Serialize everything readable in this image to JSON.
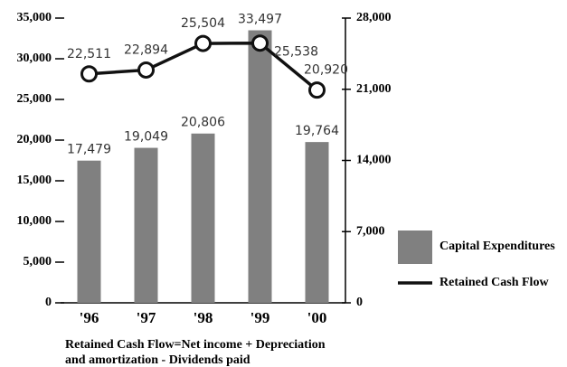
{
  "chart_data": {
    "type": "bar",
    "categories": [
      "'96",
      "'97",
      "'98",
      "'99",
      "'00"
    ],
    "series": [
      {
        "name": "Capital Expenditures",
        "type": "bar",
        "color": "#808080",
        "values": [
          17479,
          19049,
          20806,
          33497,
          19764
        ],
        "value_labels": [
          "17,479",
          "19,049",
          "20,806",
          "33,497",
          "19,764"
        ]
      },
      {
        "name": "Retained Cash Flow",
        "type": "line",
        "axis": "y2",
        "color": "#111111",
        "values": [
          22511,
          22894,
          25504,
          25538,
          20920
        ],
        "value_labels": [
          "22,511",
          "22,894",
          "25,504",
          "25,538",
          "20,920"
        ]
      }
    ],
    "ylim": [
      0,
      35000
    ],
    "yticks": [
      0,
      {
        "value": 5000,
        "label": "5,000"
      },
      {
        "value": 10000,
        "label": "10,000"
      },
      {
        "value": 15000,
        "label": "15,000"
      },
      {
        "value": 20000,
        "label": "20,000"
      },
      {
        "value": 25000,
        "label": "25,000"
      },
      {
        "value": 30000,
        "label": "30,000"
      },
      {
        "value": 35000,
        "label": "35,000"
      }
    ],
    "y2lim": [
      0,
      28000
    ],
    "y2ticks": [
      0,
      {
        "value": 7000,
        "label": "7,000"
      },
      {
        "value": 14000,
        "label": "14,000"
      },
      {
        "value": 21000,
        "label": "21,000"
      },
      {
        "value": 28000,
        "label": "28,000"
      }
    ],
    "note": [
      "Retained Cash Flow=Net income + Depreciation",
      "and amortization - Dividends paid"
    ]
  }
}
